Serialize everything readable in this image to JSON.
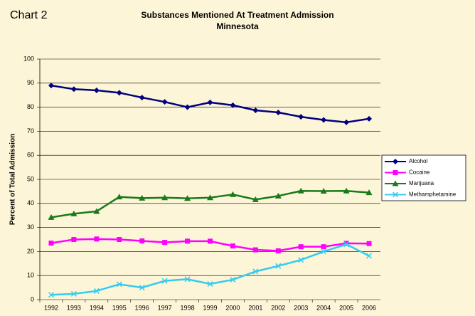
{
  "figure_label": "Chart 2",
  "chart_data": {
    "type": "line",
    "title": "Substances Mentioned At Treatment Admission",
    "subtitle": "Minnesota",
    "y_label": "Percent of Total Admission",
    "categories": [
      "1992",
      "1993",
      "1994",
      "1995",
      "1996",
      "1997",
      "1998",
      "1999",
      "2000",
      "2001",
      "2002",
      "2003",
      "2004",
      "2005",
      "2006"
    ],
    "series": [
      {
        "name": "Alcohol",
        "color": "#000080",
        "marker": "diamond",
        "values": [
          89,
          87.5,
          87,
          86,
          84,
          82.2,
          80,
          82,
          80.8,
          78.7,
          77.8,
          76,
          74.7,
          73.7,
          75.2
        ]
      },
      {
        "name": "Cocaine",
        "color": "#ff00ff",
        "marker": "square",
        "values": [
          23.5,
          25,
          25.2,
          25,
          24.4,
          23.8,
          24.3,
          24.3,
          22.3,
          20.7,
          20.3,
          22,
          22,
          23.4,
          23.3
        ]
      },
      {
        "name": "Marijuana",
        "color": "#1a7a1a",
        "marker": "triangle",
        "values": [
          34.2,
          35.7,
          36.7,
          42.7,
          42.2,
          42.4,
          42.1,
          42.4,
          43.7,
          41.6,
          43.1,
          45.2,
          45.1,
          45.2,
          44.5
        ]
      },
      {
        "name": "Methamphetamine",
        "color": "#33ccee",
        "marker": "x",
        "values": [
          2,
          2.4,
          3.6,
          6.4,
          5,
          7.8,
          8.5,
          6.5,
          8.3,
          11.7,
          14,
          16.5,
          20,
          23,
          18.2
        ]
      }
    ],
    "ylim": [
      0,
      100
    ],
    "yticks": [
      0,
      10,
      20,
      30,
      40,
      50,
      60,
      70,
      80,
      90,
      100
    ],
    "grid": true,
    "legend": "right"
  }
}
